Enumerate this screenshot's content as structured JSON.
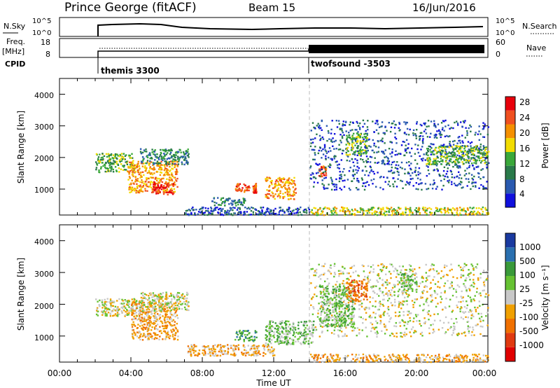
{
  "header": {
    "station": "Prince George (fitACF)",
    "beam": "Beam 15",
    "date": "16/Jun/2016"
  },
  "top_panels": {
    "nsky_label": "N.Sky",
    "nsky_ticks": [
      "10^5",
      "10^0"
    ],
    "nsearch_label": "N.Search",
    "nsearch_ticks": [
      "10^5",
      "10^0"
    ],
    "freq_label": "Freq.",
    "freq_unit": "[MHz]",
    "freq_ticks": [
      "18",
      "8"
    ],
    "nave_label": "Nave",
    "nave_ticks": [
      "60",
      "0"
    ],
    "cpid_label": "CPID",
    "cpid_segments": [
      {
        "name": "themis 3300",
        "start_hour": 2.0
      },
      {
        "name": "twofsound -3503",
        "start_hour": 14.0
      }
    ]
  },
  "chart_data": [
    {
      "type": "heatmap",
      "panel": "power",
      "ylabel": "Slant Range [km]",
      "xlabel": "",
      "ylim": [
        180,
        4500
      ],
      "y_ticks": [
        "1000",
        "2000",
        "3000",
        "4000"
      ],
      "x_ticks": [
        "00:00",
        "04:00",
        "08:00",
        "12:00",
        "16:00",
        "20:00",
        "00:00"
      ],
      "xlim_hours": [
        0,
        24
      ],
      "colorbar_label": "Power [dB]",
      "colorbar_ticks": [
        "28",
        "24",
        "20",
        "16",
        "12",
        "8",
        "4"
      ],
      "colorbar_colors": [
        "#e8000b",
        "#f05020",
        "#f59000",
        "#f2dc00",
        "#3aa83a",
        "#2a7a4a",
        "#2a5ab0",
        "#1010dd"
      ],
      "regions": [
        {
          "t0": 2.0,
          "t1": 4.2,
          "r0": 1550,
          "r1": 2150,
          "level": 3
        },
        {
          "t0": 3.8,
          "t1": 6.6,
          "r0": 900,
          "r1": 1900,
          "level": 5
        },
        {
          "t0": 5.2,
          "t1": 6.4,
          "r0": 850,
          "r1": 1250,
          "level": 7
        },
        {
          "t0": 4.5,
          "t1": 7.2,
          "r0": 1800,
          "r1": 2300,
          "level": 2
        },
        {
          "t0": 8.5,
          "t1": 10.5,
          "r0": 500,
          "r1": 750,
          "level": 2
        },
        {
          "t0": 9.8,
          "t1": 10.6,
          "r0": 900,
          "r1": 1200,
          "level": 6
        },
        {
          "t0": 10.8,
          "t1": 11.0,
          "r0": 900,
          "r1": 1200,
          "level": 6
        },
        {
          "t0": 11.5,
          "t1": 13.2,
          "r0": 700,
          "r1": 1400,
          "level": 5
        },
        {
          "t0": 7.0,
          "t1": 14.0,
          "r0": 200,
          "r1": 450,
          "level": 1
        },
        {
          "t0": 14.0,
          "t1": 24.0,
          "r0": 200,
          "r1": 450,
          "level": 4
        },
        {
          "t0": 14.5,
          "t1": 14.9,
          "r0": 1400,
          "r1": 1750,
          "level": 6
        },
        {
          "t0": 14.0,
          "t1": 24.0,
          "r0": 1000,
          "r1": 3200,
          "level": 1
        },
        {
          "t0": 16.0,
          "t1": 17.2,
          "r0": 2100,
          "r1": 2800,
          "level": 3
        },
        {
          "t0": 20.5,
          "t1": 24.0,
          "r0": 1800,
          "r1": 2400,
          "level": 3
        }
      ]
    },
    {
      "type": "heatmap",
      "panel": "velocity",
      "ylabel": "Slant Range [km]",
      "xlabel": "Time UT",
      "ylim": [
        180,
        4500
      ],
      "y_ticks": [
        "1000",
        "2000",
        "3000",
        "4000"
      ],
      "x_ticks": [
        "00:00",
        "04:00",
        "08:00",
        "12:00",
        "16:00",
        "20:00",
        "00:00"
      ],
      "xlim_hours": [
        0,
        24
      ],
      "colorbar_label": "Velocity [m s⁻¹]",
      "colorbar_ticks": [
        "1000",
        "500",
        "100",
        "25",
        "-25",
        "-100",
        "-500",
        "-1000"
      ],
      "colorbar_colors": [
        "#1a3aa0",
        "#2a70b0",
        "#3a9a3a",
        "#66c233",
        "#c8c8c8",
        "#f0a000",
        "#f07000",
        "#e03a10",
        "#e00000"
      ],
      "regions": [
        {
          "t0": 2.0,
          "t1": 4.5,
          "r0": 1650,
          "r1": 2200,
          "level": 4
        },
        {
          "t0": 4.0,
          "t1": 6.6,
          "r0": 900,
          "r1": 2100,
          "level": 3
        },
        {
          "t0": 4.5,
          "t1": 7.2,
          "r0": 1800,
          "r1": 2400,
          "level": 4
        },
        {
          "t0": 7.0,
          "t1": 12.0,
          "r0": 400,
          "r1": 750,
          "level": 3
        },
        {
          "t0": 9.8,
          "t1": 11.0,
          "r0": 850,
          "r1": 1200,
          "level": 6
        },
        {
          "t0": 11.5,
          "t1": 14.2,
          "r0": 750,
          "r1": 1500,
          "level": 5
        },
        {
          "t0": 14.0,
          "t1": 24.0,
          "r0": 200,
          "r1": 450,
          "level": 3
        },
        {
          "t0": 14.0,
          "t1": 24.0,
          "r0": 1000,
          "r1": 3300,
          "level": 4
        },
        {
          "t0": 14.5,
          "t1": 16.5,
          "r0": 1300,
          "r1": 2600,
          "level": 5
        },
        {
          "t0": 16.0,
          "t1": 17.2,
          "r0": 2100,
          "r1": 2800,
          "level": 2
        },
        {
          "t0": 19.0,
          "t1": 20.0,
          "r0": 2400,
          "r1": 3000,
          "level": 5
        }
      ]
    }
  ]
}
